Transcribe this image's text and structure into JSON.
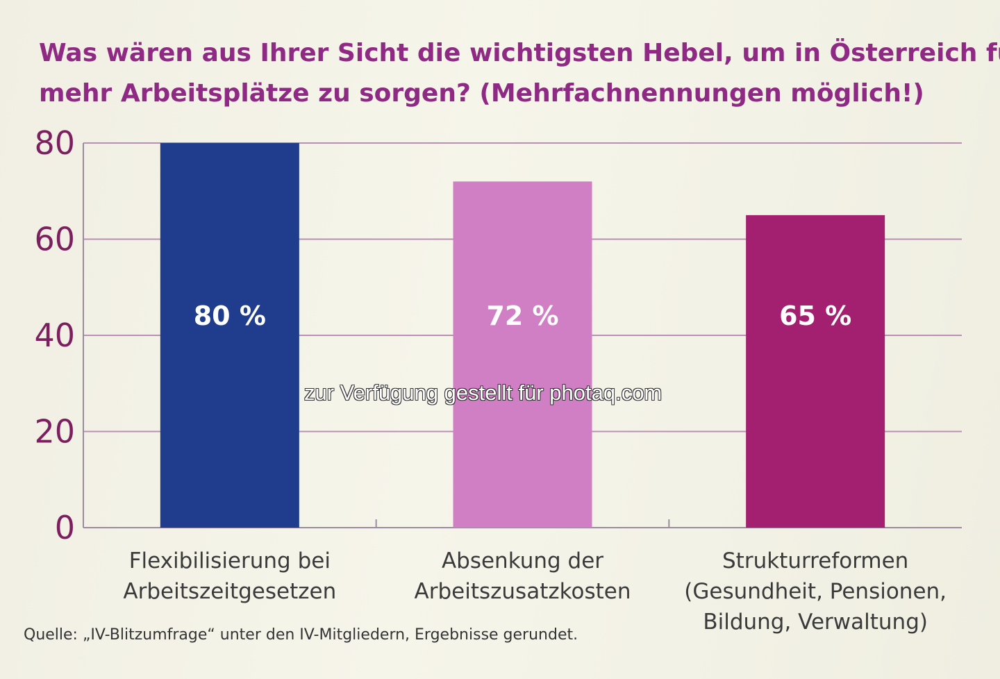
{
  "chart_data": {
    "type": "bar",
    "title": [
      "Was wären aus Ihrer Sicht die wichtigsten Hebel, um in Österreich für",
      "mehr Arbeitsplätze zu sorgen? (Mehrfachnennungen möglich!)"
    ],
    "categories": [
      [
        "Flexibilisierung bei",
        "Arbeitszeitgesetzen"
      ],
      [
        "Absenkung der",
        "Arbeitszusatzkosten"
      ],
      [
        "Strukturreformen",
        "(Gesundheit, Pensionen,",
        "Bildung, Verwaltung)"
      ]
    ],
    "values": [
      80,
      72,
      65
    ],
    "data_labels": [
      "80 %",
      "72 %",
      "65 %"
    ],
    "colors": [
      "#1f3d8c",
      "#d17fc4",
      "#a32071"
    ],
    "ylim": [
      0,
      80
    ],
    "yticks": [
      0,
      20,
      40,
      60,
      80
    ],
    "grid": true,
    "xlabel": "",
    "ylabel": ""
  },
  "source": "Quelle: „IV-Blitzumfrage“ unter den IV-Mitgliedern, Ergebnisse gerundet.",
  "watermark": "zur Verfügung gestellt für photaq.com",
  "colors": {
    "title": "#8e2a83",
    "ytick": "#7b1f5f",
    "grid": "#b98fb4"
  }
}
